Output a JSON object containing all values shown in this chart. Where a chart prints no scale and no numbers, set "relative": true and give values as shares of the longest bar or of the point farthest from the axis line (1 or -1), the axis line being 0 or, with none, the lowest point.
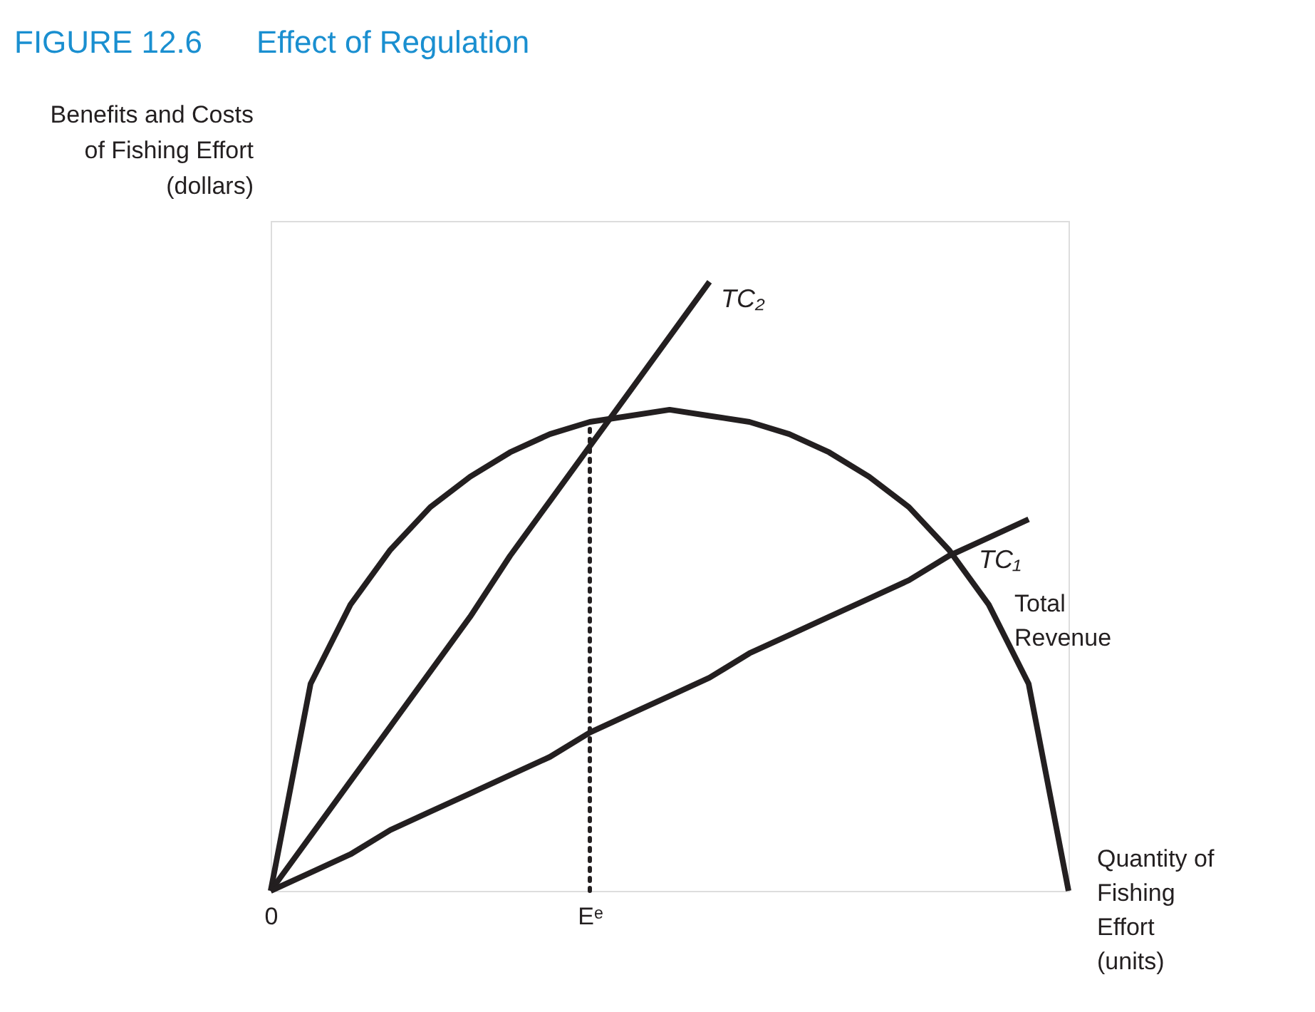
{
  "chart_data": {
    "type": "line",
    "title": "FIGURE 12.6",
    "subtitle": "Effect of Regulation",
    "xlabel": "Quantity of Fishing Effort (units)",
    "ylabel": "Benefits and Costs of Fishing Effort (dollars)",
    "relative": true,
    "tick_labels": "x",
    "marker": "none",
    "categories": [
      "0",
      null,
      null,
      null,
      null,
      null,
      null,
      null,
      "Eᵉ",
      null,
      null,
      null,
      null,
      null,
      null,
      null,
      null,
      null,
      null,
      null,
      null
    ],
    "ref_lines": [
      {
        "axis": "x",
        "value": "Eᵉ",
        "line_style": "dotted",
        "color": "#231f20"
      }
    ],
    "series": [
      {
        "name": "Total Revenue",
        "color": "#231f20",
        "values": [
          0,
          0.34,
          0.47,
          0.56,
          0.63,
          0.68,
          0.72,
          0.75,
          0.77,
          0.78,
          0.79,
          0.78,
          0.77,
          0.75,
          0.72,
          0.68,
          0.63,
          0.56,
          0.47,
          0.34,
          0
        ]
      },
      {
        "name": "TC₂",
        "color": "#231f20",
        "values": [
          0,
          0.09,
          0.18,
          0.27,
          0.36,
          0.45,
          0.55,
          0.64,
          0.73,
          0.82,
          0.91,
          1,
          null,
          null,
          null,
          null,
          null,
          null,
          null,
          null,
          null
        ]
      },
      {
        "name": "TC₁",
        "color": "#231f20",
        "values": [
          0,
          0.03,
          0.06,
          0.1,
          0.13,
          0.16,
          0.19,
          0.22,
          0.26,
          0.29,
          0.32,
          0.35,
          0.39,
          0.42,
          0.45,
          0.48,
          0.51,
          0.55,
          0.58,
          0.61,
          null
        ]
      }
    ]
  }
}
